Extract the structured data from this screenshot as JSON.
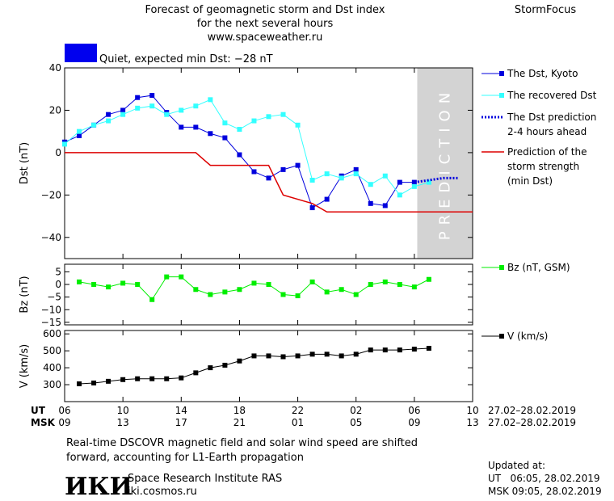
{
  "header": {
    "title_lines": [
      "Forecast of geomagnetic storm and Dst index",
      "for the next several hours",
      "www.spaceweather.ru"
    ],
    "brand": "StormFocus",
    "status_text": "Quiet, expected min Dst: −28 nT",
    "status_color": "#0000ee"
  },
  "colors": {
    "dst_kyoto": "#0000dd",
    "dst_recovered": "#33ffff",
    "dst_prediction": "#0000dd",
    "storm_strength": "#dd0000",
    "bz": "#00ee00",
    "v": "#000000",
    "prediction_band": "#d3d3d3"
  },
  "chart_data": [
    {
      "type": "line",
      "ylabel": "Dst (nT)",
      "ylim": [
        -50,
        40
      ],
      "yticks": [
        40,
        20,
        0,
        -20,
        -40
      ],
      "xlim": [
        6,
        34
      ],
      "prediction_band": [
        30.2,
        34
      ],
      "prediction_label": "PREDICTION",
      "series": [
        {
          "name": "The Dst, Kyoto",
          "style": "line-square",
          "color": "dst_kyoto",
          "x": [
            6,
            7,
            8,
            9,
            10,
            11,
            12,
            13,
            14,
            15,
            16,
            17,
            18,
            19,
            20,
            21,
            22,
            23,
            24,
            25,
            26,
            27,
            28,
            29,
            30
          ],
          "y": [
            5,
            8,
            13,
            18,
            20,
            26,
            27,
            19,
            12,
            12,
            9,
            7,
            -1,
            -9,
            -12,
            -8,
            -6,
            -26,
            -22,
            -11,
            -8,
            -24,
            -25,
            -14,
            -14
          ]
        },
        {
          "name": "The recovered Dst",
          "style": "line-square",
          "color": "dst_recovered",
          "x": [
            6,
            7,
            8,
            9,
            10,
            11,
            12,
            13,
            14,
            15,
            16,
            17,
            18,
            19,
            20,
            21,
            22,
            23,
            24,
            25,
            26,
            27,
            28,
            29,
            30,
            31
          ],
          "y": [
            4,
            10,
            13,
            15,
            18,
            21,
            22,
            18,
            20,
            22,
            25,
            14,
            11,
            15,
            17,
            18,
            13,
            -13,
            -10,
            -12,
            -10,
            -15,
            -11,
            -20,
            -16,
            -14
          ]
        },
        {
          "name": "The Dst prediction\n2-4 hours ahead",
          "style": "dotted",
          "color": "dst_prediction",
          "x": [
            30,
            31,
            32,
            33
          ],
          "y": [
            -14,
            -13,
            -12,
            -12
          ]
        },
        {
          "name": "Prediction of the\nstorm strength\n(min Dst)",
          "style": "step",
          "color": "storm_strength",
          "x": [
            6,
            15,
            16,
            18,
            19,
            20,
            21,
            23,
            24,
            34
          ],
          "y": [
            0,
            0,
            -6,
            -6,
            -6,
            -6,
            -20,
            -24,
            -28,
            -28
          ]
        }
      ]
    },
    {
      "type": "line",
      "ylabel": "Bz (nT)",
      "ylim": [
        -16,
        8
      ],
      "yticks": [
        5,
        0,
        -5,
        -10,
        -15
      ],
      "xlim": [
        6,
        34
      ],
      "series": [
        {
          "name": "Bz (nT, GSM)",
          "style": "line-square",
          "color": "bz",
          "x": [
            7,
            8,
            9,
            10,
            11,
            12,
            13,
            14,
            15,
            16,
            17,
            18,
            19,
            20,
            21,
            22,
            23,
            24,
            25,
            26,
            27,
            28,
            29,
            30,
            31
          ],
          "y": [
            1,
            0,
            -1,
            0.5,
            0,
            -6,
            3,
            3,
            -2,
            -4,
            -3,
            -2,
            0.5,
            0,
            -4,
            -4.5,
            1,
            -3,
            -2,
            -4,
            0,
            1,
            0,
            -1,
            2
          ]
        }
      ]
    },
    {
      "type": "line",
      "ylabel": "V (km/s)",
      "ylim": [
        200,
        620
      ],
      "yticks": [
        600,
        500,
        400,
        300
      ],
      "xlim": [
        6,
        34
      ],
      "series": [
        {
          "name": "V (km/s)",
          "style": "line-square",
          "color": "v",
          "x": [
            7,
            8,
            9,
            10,
            11,
            12,
            13,
            14,
            15,
            16,
            17,
            18,
            19,
            20,
            21,
            22,
            23,
            24,
            25,
            26,
            27,
            28,
            29,
            30,
            31
          ],
          "y": [
            305,
            310,
            320,
            330,
            335,
            335,
            335,
            340,
            370,
            400,
            415,
            440,
            470,
            470,
            465,
            470,
            480,
            480,
            470,
            480,
            505,
            505,
            505,
            510,
            515
          ]
        }
      ]
    }
  ],
  "x_axis": {
    "ut_label": "UT",
    "msk_label": "MSK",
    "ut_ticks": [
      "06",
      "10",
      "14",
      "18",
      "22",
      "02",
      "06",
      "10"
    ],
    "msk_ticks": [
      "09",
      "13",
      "17",
      "21",
      "01",
      "05",
      "09",
      "13"
    ],
    "date_range": "27.02–28.02.2019"
  },
  "footer": {
    "note_lines": [
      "Real-time DSCOVR magnetic field and solar wind speed are shifted",
      "forward, accounting for L1-Earth propagation"
    ],
    "logo_text": "ИКИ",
    "institute": "Space Research Institute RAS",
    "website": "iki.cosmos.ru",
    "updated_label": "Updated at:",
    "updated_ut": "UT   06:05, 28.02.2019",
    "updated_msk": "MSK 09:05, 28.02.2019"
  }
}
